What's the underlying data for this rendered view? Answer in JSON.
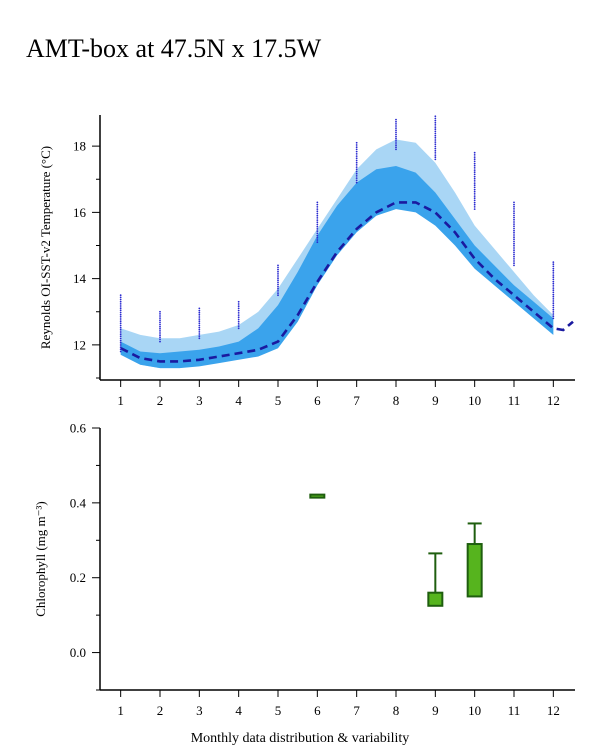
{
  "title": "AMT-box at 47.5N x 17.5W",
  "caption": "Monthly data distribution & variability",
  "colors": {
    "outer_band": "#a9d6f5",
    "inner_band": "#3aa3ec",
    "climatology_line": "#1a1aa0",
    "scatter": "#2a2ad0",
    "box_fill": "#56b41e",
    "box_stroke": "#1f5e0f"
  },
  "chart_data": [
    {
      "type": "area",
      "title": "",
      "xlabel": "",
      "ylabel": "Reynolds OI-SST-v2 Temperature (°C)",
      "x_ticks": [
        "1",
        "2",
        "3",
        "4",
        "5",
        "6",
        "7",
        "8",
        "9",
        "10",
        "11",
        "12"
      ],
      "y_ticks": [
        "12",
        "14",
        "16",
        "18"
      ],
      "xlim": [
        0.5,
        12.5
      ],
      "ylim": [
        11.0,
        19.0
      ],
      "grid": false,
      "series": [
        {
          "role": "outer-band",
          "x": [
            1,
            1.5,
            2,
            2.5,
            3,
            3.5,
            4,
            4.5,
            5,
            5.5,
            6,
            6.5,
            7,
            7.5,
            8,
            8.5,
            9,
            9.5,
            10,
            10.5,
            11,
            11.5,
            12
          ],
          "upper": [
            12.5,
            12.3,
            12.2,
            12.2,
            12.3,
            12.4,
            12.6,
            13.0,
            13.7,
            14.6,
            15.5,
            16.4,
            17.3,
            17.9,
            18.2,
            18.1,
            17.5,
            16.6,
            15.6,
            14.9,
            14.2,
            13.5,
            12.9
          ],
          "lower": [
            11.7,
            11.4,
            11.3,
            11.3,
            11.4,
            11.5,
            11.6,
            11.7,
            12.0,
            12.9,
            14.0,
            14.9,
            15.6,
            16.1,
            16.2,
            16.1,
            15.7,
            15.1,
            14.4,
            13.8,
            13.3,
            12.8,
            12.3
          ]
        },
        {
          "role": "inner-band",
          "x": [
            1,
            1.5,
            2,
            2.5,
            3,
            3.5,
            4,
            4.5,
            5,
            5.5,
            6,
            6.5,
            7,
            7.5,
            8,
            8.5,
            9,
            9.5,
            10,
            10.5,
            11,
            11.5,
            12
          ],
          "upper": [
            12.1,
            11.8,
            11.75,
            11.8,
            11.85,
            11.95,
            12.1,
            12.5,
            13.2,
            14.2,
            15.3,
            16.2,
            16.9,
            17.3,
            17.4,
            17.2,
            16.6,
            15.8,
            15.0,
            14.4,
            13.8,
            13.3,
            12.8
          ],
          "lower": [
            11.7,
            11.4,
            11.3,
            11.3,
            11.35,
            11.45,
            11.55,
            11.65,
            11.9,
            12.7,
            13.8,
            14.7,
            15.4,
            15.9,
            16.1,
            16.0,
            15.6,
            15.0,
            14.3,
            13.8,
            13.3,
            12.8,
            12.3
          ]
        },
        {
          "role": "climatology-line",
          "x": [
            1,
            1.5,
            2,
            2.5,
            3,
            3.5,
            4,
            4.5,
            5,
            5.5,
            6,
            6.5,
            7,
            7.5,
            8,
            8.5,
            9,
            9.5,
            10,
            10.5,
            11,
            11.5,
            12,
            12.25,
            12.5
          ],
          "values": [
            11.9,
            11.6,
            11.5,
            11.5,
            11.55,
            11.65,
            11.75,
            11.85,
            12.1,
            12.9,
            13.9,
            14.8,
            15.5,
            16.0,
            16.3,
            16.3,
            16.0,
            15.4,
            14.6,
            14.0,
            13.5,
            13.0,
            12.5,
            12.45,
            12.7
          ]
        }
      ],
      "scatter_ranges": [
        {
          "month": 1,
          "min": 11.8,
          "max": 13.5
        },
        {
          "month": 2,
          "min": 12.1,
          "max": 13.0
        },
        {
          "month": 3,
          "min": 12.2,
          "max": 13.1
        },
        {
          "month": 4,
          "min": 12.5,
          "max": 13.3
        },
        {
          "month": 5,
          "min": 13.5,
          "max": 14.4
        },
        {
          "month": 6,
          "min": 15.1,
          "max": 16.3
        },
        {
          "month": 7,
          "min": 16.9,
          "max": 18.1
        },
        {
          "month": 8,
          "min": 17.9,
          "max": 18.8
        },
        {
          "month": 9,
          "min": 17.6,
          "max": 18.9
        },
        {
          "month": 10,
          "min": 16.1,
          "max": 17.8
        },
        {
          "month": 11,
          "min": 14.4,
          "max": 16.3
        },
        {
          "month": 12,
          "min": 12.8,
          "max": 14.5
        }
      ]
    },
    {
      "type": "box",
      "title": "",
      "xlabel": "",
      "ylabel": "Chlorophyll (mg m⁻³)",
      "x_ticks": [
        "1",
        "2",
        "3",
        "4",
        "5",
        "6",
        "7",
        "8",
        "9",
        "10",
        "11",
        "12"
      ],
      "y_ticks": [
        "0.0",
        "0.2",
        "0.4",
        "0.6"
      ],
      "xlim": [
        0.5,
        12.5
      ],
      "ylim": [
        -0.1,
        0.6
      ],
      "grid": false,
      "boxes": [
        {
          "month": 6,
          "whisker_low": 0.415,
          "q1": 0.415,
          "q3": 0.422,
          "whisker_high": 0.422
        },
        {
          "month": 9,
          "whisker_low": 0.125,
          "q1": 0.125,
          "q3": 0.16,
          "whisker_high": 0.265
        },
        {
          "month": 10,
          "whisker_low": 0.15,
          "q1": 0.15,
          "q3": 0.29,
          "whisker_high": 0.345
        }
      ]
    }
  ]
}
